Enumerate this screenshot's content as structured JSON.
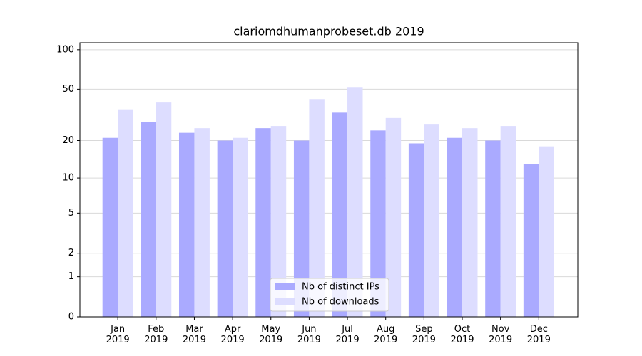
{
  "chart_data": {
    "type": "bar",
    "title": "clariomdhumanprobeset.db 2019",
    "categories": [
      "Jan\n2019",
      "Feb\n2019",
      "Mar\n2019",
      "Apr\n2019",
      "May\n2019",
      "Jun\n2019",
      "Jul\n2019",
      "Aug\n2019",
      "Sep\n2019",
      "Oct\n2019",
      "Nov\n2019",
      "Dec\n2019"
    ],
    "series": [
      {
        "name": "Nb of distinct IPs",
        "color": "#aaaaff",
        "values": [
          21,
          28,
          23,
          20,
          25,
          20,
          33,
          24,
          19,
          21,
          20,
          13
        ]
      },
      {
        "name": "Nb of downloads",
        "color": "#ddddff",
        "values": [
          35,
          40,
          25,
          21,
          26,
          42,
          52,
          30,
          27,
          25,
          26,
          18
        ]
      }
    ],
    "yscale": "log1p",
    "ylim": [
      0,
      113
    ],
    "yticks": [
      0,
      1,
      2,
      5,
      10,
      20,
      50,
      100
    ],
    "grid": true,
    "legend": "lower center"
  }
}
